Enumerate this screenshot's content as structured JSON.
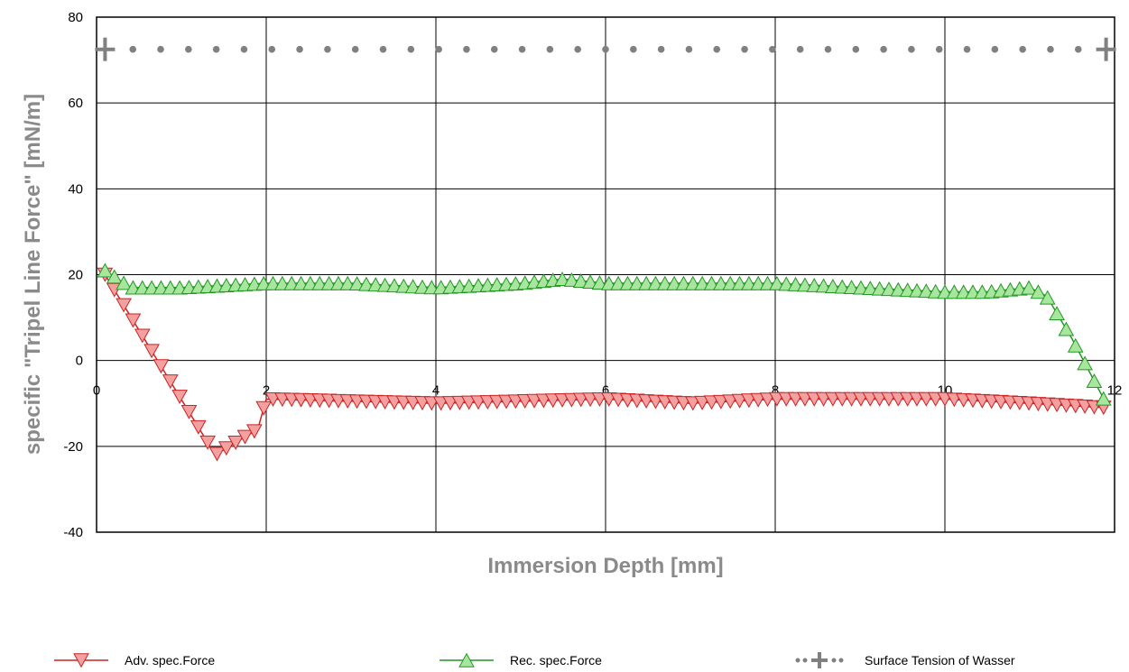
{
  "chart_data": {
    "type": "scatter",
    "xlabel": "Immersion Depth [mm]",
    "ylabel": "specific \"Tripel Line Force\" [mN/m]",
    "xlim": [
      0,
      12
    ],
    "ylim": [
      -40,
      80
    ],
    "xticks": [
      0,
      2,
      4,
      6,
      8,
      10,
      12
    ],
    "yticks": [
      -40,
      -20,
      0,
      20,
      40,
      60,
      80
    ],
    "grid": true,
    "legend_position": "bottom",
    "series": [
      {
        "name": "Adv. spec.Force",
        "color": "#cc2222",
        "fill": "#f4a0a0",
        "marker": "triangle-down",
        "x": [
          0.1,
          1.4,
          1.9,
          2.0,
          4.0,
          6.0,
          7.0,
          8.0,
          10.0,
          11.0,
          11.9
        ],
        "y": [
          20,
          -22,
          -16,
          -9,
          -10,
          -9,
          -10,
          -9,
          -9,
          -10,
          -11
        ]
      },
      {
        "name": "Rec. spec.Force",
        "color": "#229922",
        "fill": "#a8e6a0",
        "marker": "triangle-up",
        "x": [
          0.1,
          0.4,
          1.0,
          2.0,
          3.0,
          4.0,
          5.0,
          5.5,
          6.0,
          7.0,
          8.0,
          9.0,
          10.0,
          10.5,
          11.0,
          11.2,
          11.5,
          11.9
        ],
        "y": [
          21,
          17,
          17,
          18,
          18,
          17,
          18,
          19,
          18,
          18,
          18,
          17,
          16,
          16,
          17,
          15,
          5,
          -10
        ]
      },
      {
        "name": "Surface Tension of Wasser",
        "color": "#808080",
        "marker": "dots-with-end-crosses",
        "x": [
          0.1,
          11.9
        ],
        "y": [
          72.5,
          72.5
        ]
      }
    ]
  }
}
